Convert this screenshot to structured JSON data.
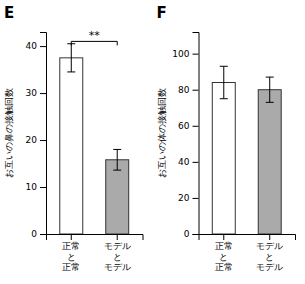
{
  "chart_data": [
    {
      "type": "bar",
      "title": "E",
      "categories": [
        "正常\nと\n正常",
        "モデル\nと\nモデル"
      ],
      "values": [
        37.5,
        15.8
      ],
      "errors": [
        3.0,
        2.2
      ],
      "colors": [
        "white",
        "#aaaaaa"
      ],
      "y_label": "お互いの鼻の接触回数",
      "ylim": [
        0,
        43
      ],
      "yticks": [
        0,
        10,
        20,
        30,
        40
      ],
      "annotations": [
        {
          "text": "**",
          "y": 41.0
        }
      ]
    },
    {
      "type": "bar",
      "title": "F",
      "categories": [
        "正常\nと\n正常",
        "モデル\nと\nモデル"
      ],
      "values": [
        84.0,
        80.0
      ],
      "errors": [
        9.0,
        7.0
      ],
      "colors": [
        "white",
        "#aaaaaa"
      ],
      "y_label": "お互いの体の接触回数",
      "ylim": [
        0,
        112
      ],
      "yticks": [
        0,
        20,
        40,
        60,
        80,
        100
      ]
    }
  ]
}
